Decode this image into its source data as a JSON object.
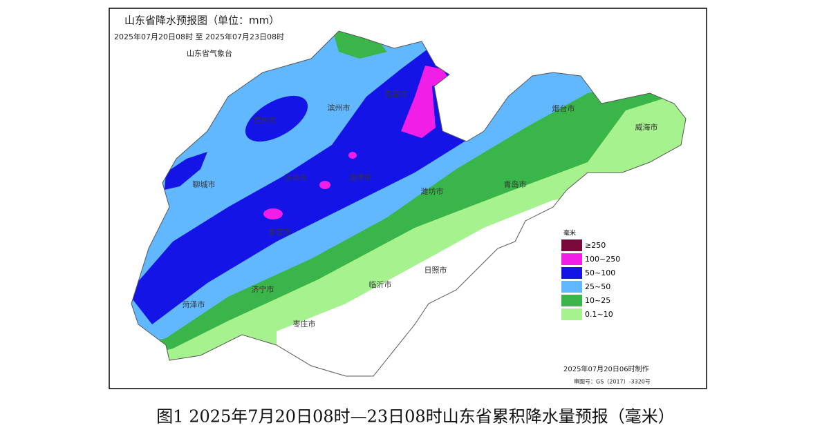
{
  "header": {
    "title": "山东省降水预报图（单位：mm）",
    "period": "2025年07月20日08时  至  2025年07月23日08时",
    "issuer": "山东省气象台"
  },
  "cities": [
    "德州市",
    "滨州市",
    "东营市",
    "烟台市",
    "威海市",
    "聊城市",
    "济南市",
    "淄博市",
    "潍坊市",
    "青岛市",
    "泰安市",
    "济宁市",
    "菏泽市",
    "临沂市",
    "日照市",
    "枣庄市"
  ],
  "legend": {
    "title": "毫米",
    "items": [
      {
        "label": "≥250",
        "color": "#7a0a3a"
      },
      {
        "label": "100~250",
        "color": "#f01ee6"
      },
      {
        "label": "50~100",
        "color": "#1414e6"
      },
      {
        "label": "25~50",
        "color": "#61b8ff"
      },
      {
        "label": "10~25",
        "color": "#3ab54a"
      },
      {
        "label": "0.1~10",
        "color": "#a6f28f"
      }
    ]
  },
  "footer": {
    "made": "2025年07月20日06时制作",
    "map_number": "审图号：GS（2017）-3320号"
  },
  "caption": "图1 2025年7月20日08时—23日08时山东省累积降水量预报（毫米）"
}
